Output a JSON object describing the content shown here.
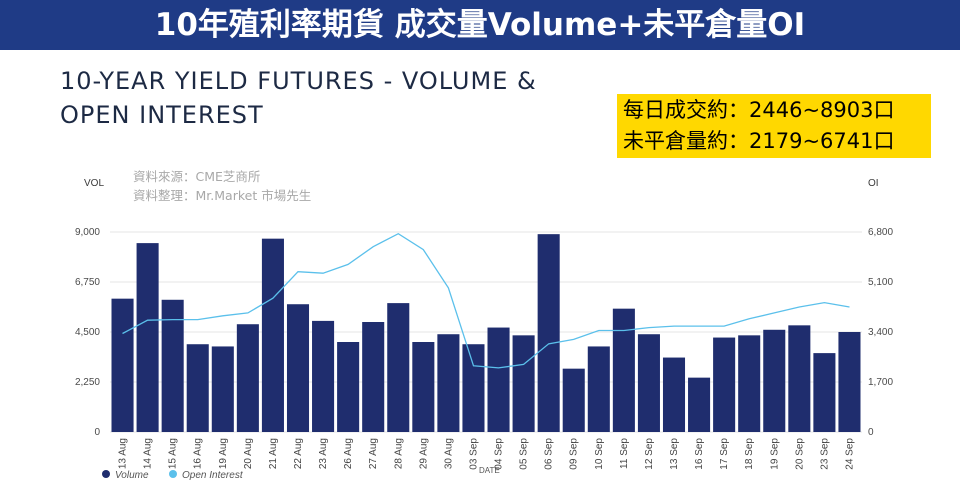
{
  "banner": {
    "title": "10年殖利率期貨 成交量Volume+未平倉量OI"
  },
  "info_box": {
    "line1": "每日成交約：2446~8903口",
    "line2": "未平倉量約：2179~6741口"
  },
  "source": {
    "line1": "資料來源：CME芝商所",
    "line2": "資料整理：Mr.Market 市場先生"
  },
  "colors": {
    "bar": "#1f2d6e",
    "line": "#5bc0eb",
    "banner": "#1f3b86",
    "highlight": "#ffd800"
  },
  "chart_data": {
    "type": "bar+line",
    "title_line1": "10-YEAR YIELD FUTURES - VOLUME &",
    "title_line2": "OPEN INTEREST",
    "ylabel_left": "VOL",
    "ylabel_right": "OI",
    "xlabel": "DATE",
    "ylim_left": [
      0,
      9000
    ],
    "ylim_right": [
      0,
      6800
    ],
    "yticks_left": [
      "0",
      "2,250",
      "4,500",
      "6,750",
      "9,000"
    ],
    "yticks_right": [
      "0",
      "1,700",
      "3,400",
      "5,100",
      "6,800"
    ],
    "yticks_left_values": [
      0,
      2250,
      4500,
      6750,
      9000
    ],
    "yticks_right_values": [
      0,
      1700,
      3400,
      5100,
      6800
    ],
    "categories": [
      "13 Aug",
      "14 Aug",
      "15 Aug",
      "16 Aug",
      "19 Aug",
      "20 Aug",
      "21 Aug",
      "22 Aug",
      "23 Aug",
      "26 Aug",
      "27 Aug",
      "28 Aug",
      "29 Aug",
      "30 Aug",
      "03 Sep",
      "04 Sep",
      "05 Sep",
      "06 Sep",
      "09 Sep",
      "10 Sep",
      "11 Sep",
      "12 Sep",
      "13 Sep",
      "16 Sep",
      "17 Sep",
      "18 Sep",
      "19 Sep",
      "20 Sep",
      "23 Sep",
      "24 Sep"
    ],
    "series": [
      {
        "name": "Volume",
        "type": "bar",
        "axis": "left",
        "values": [
          6000,
          8500,
          5950,
          3950,
          3850,
          4850,
          8700,
          5750,
          5000,
          4050,
          4950,
          5800,
          4050,
          4400,
          3950,
          4700,
          4350,
          8903,
          2850,
          3850,
          5550,
          4400,
          3350,
          2446,
          4250,
          4350,
          4600,
          4800,
          3550,
          4500
        ]
      },
      {
        "name": "Open Interest",
        "type": "line",
        "axis": "right",
        "values": [
          3350,
          3800,
          3820,
          3820,
          3950,
          4050,
          4550,
          5450,
          5400,
          5700,
          6300,
          6741,
          6200,
          4900,
          2250,
          2179,
          2300,
          3000,
          3150,
          3450,
          3450,
          3550,
          3600,
          3600,
          3600,
          3850,
          4050,
          4250,
          4400,
          4250
        ]
      }
    ],
    "legend_placement": "bottom-left",
    "grid": true
  }
}
